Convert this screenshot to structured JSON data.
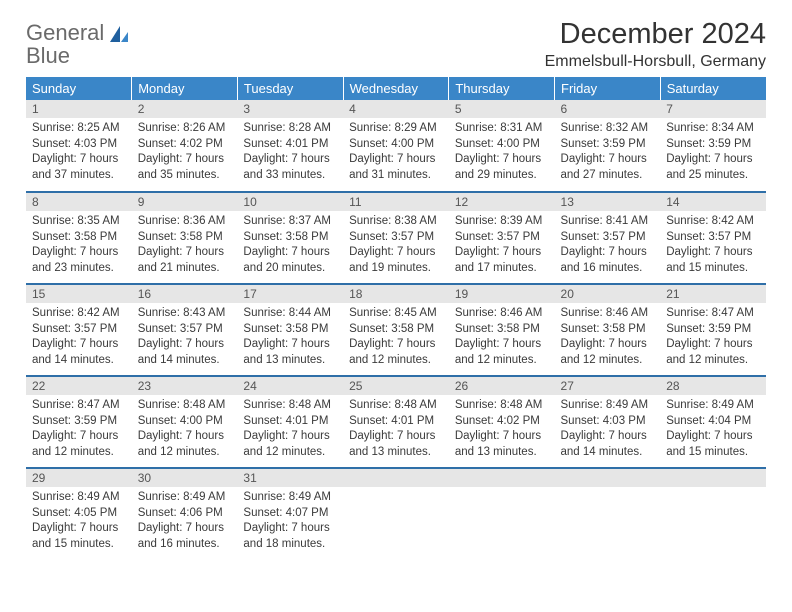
{
  "brand": {
    "word1": "General",
    "word2": "Blue"
  },
  "title": "December 2024",
  "location": "Emmelsbull-Horsbull, Germany",
  "colors": {
    "header_bg": "#3a86c8",
    "header_text": "#ffffff",
    "row_sep": "#2f6fa8",
    "daynum_bg": "#e6e6e6",
    "text": "#333333",
    "logo_gray": "#6a6a6a",
    "logo_blue": "#2e7fbf"
  },
  "weekdays": [
    "Sunday",
    "Monday",
    "Tuesday",
    "Wednesday",
    "Thursday",
    "Friday",
    "Saturday"
  ],
  "weeks": [
    [
      {
        "n": "1",
        "sr": "8:25 AM",
        "ss": "4:03 PM",
        "dl": "7 hours and 37 minutes."
      },
      {
        "n": "2",
        "sr": "8:26 AM",
        "ss": "4:02 PM",
        "dl": "7 hours and 35 minutes."
      },
      {
        "n": "3",
        "sr": "8:28 AM",
        "ss": "4:01 PM",
        "dl": "7 hours and 33 minutes."
      },
      {
        "n": "4",
        "sr": "8:29 AM",
        "ss": "4:00 PM",
        "dl": "7 hours and 31 minutes."
      },
      {
        "n": "5",
        "sr": "8:31 AM",
        "ss": "4:00 PM",
        "dl": "7 hours and 29 minutes."
      },
      {
        "n": "6",
        "sr": "8:32 AM",
        "ss": "3:59 PM",
        "dl": "7 hours and 27 minutes."
      },
      {
        "n": "7",
        "sr": "8:34 AM",
        "ss": "3:59 PM",
        "dl": "7 hours and 25 minutes."
      }
    ],
    [
      {
        "n": "8",
        "sr": "8:35 AM",
        "ss": "3:58 PM",
        "dl": "7 hours and 23 minutes."
      },
      {
        "n": "9",
        "sr": "8:36 AM",
        "ss": "3:58 PM",
        "dl": "7 hours and 21 minutes."
      },
      {
        "n": "10",
        "sr": "8:37 AM",
        "ss": "3:58 PM",
        "dl": "7 hours and 20 minutes."
      },
      {
        "n": "11",
        "sr": "8:38 AM",
        "ss": "3:57 PM",
        "dl": "7 hours and 19 minutes."
      },
      {
        "n": "12",
        "sr": "8:39 AM",
        "ss": "3:57 PM",
        "dl": "7 hours and 17 minutes."
      },
      {
        "n": "13",
        "sr": "8:41 AM",
        "ss": "3:57 PM",
        "dl": "7 hours and 16 minutes."
      },
      {
        "n": "14",
        "sr": "8:42 AM",
        "ss": "3:57 PM",
        "dl": "7 hours and 15 minutes."
      }
    ],
    [
      {
        "n": "15",
        "sr": "8:42 AM",
        "ss": "3:57 PM",
        "dl": "7 hours and 14 minutes."
      },
      {
        "n": "16",
        "sr": "8:43 AM",
        "ss": "3:57 PM",
        "dl": "7 hours and 14 minutes."
      },
      {
        "n": "17",
        "sr": "8:44 AM",
        "ss": "3:58 PM",
        "dl": "7 hours and 13 minutes."
      },
      {
        "n": "18",
        "sr": "8:45 AM",
        "ss": "3:58 PM",
        "dl": "7 hours and 12 minutes."
      },
      {
        "n": "19",
        "sr": "8:46 AM",
        "ss": "3:58 PM",
        "dl": "7 hours and 12 minutes."
      },
      {
        "n": "20",
        "sr": "8:46 AM",
        "ss": "3:58 PM",
        "dl": "7 hours and 12 minutes."
      },
      {
        "n": "21",
        "sr": "8:47 AM",
        "ss": "3:59 PM",
        "dl": "7 hours and 12 minutes."
      }
    ],
    [
      {
        "n": "22",
        "sr": "8:47 AM",
        "ss": "3:59 PM",
        "dl": "7 hours and 12 minutes."
      },
      {
        "n": "23",
        "sr": "8:48 AM",
        "ss": "4:00 PM",
        "dl": "7 hours and 12 minutes."
      },
      {
        "n": "24",
        "sr": "8:48 AM",
        "ss": "4:01 PM",
        "dl": "7 hours and 12 minutes."
      },
      {
        "n": "25",
        "sr": "8:48 AM",
        "ss": "4:01 PM",
        "dl": "7 hours and 13 minutes."
      },
      {
        "n": "26",
        "sr": "8:48 AM",
        "ss": "4:02 PM",
        "dl": "7 hours and 13 minutes."
      },
      {
        "n": "27",
        "sr": "8:49 AM",
        "ss": "4:03 PM",
        "dl": "7 hours and 14 minutes."
      },
      {
        "n": "28",
        "sr": "8:49 AM",
        "ss": "4:04 PM",
        "dl": "7 hours and 15 minutes."
      }
    ],
    [
      {
        "n": "29",
        "sr": "8:49 AM",
        "ss": "4:05 PM",
        "dl": "7 hours and 15 minutes."
      },
      {
        "n": "30",
        "sr": "8:49 AM",
        "ss": "4:06 PM",
        "dl": "7 hours and 16 minutes."
      },
      {
        "n": "31",
        "sr": "8:49 AM",
        "ss": "4:07 PM",
        "dl": "7 hours and 18 minutes."
      },
      null,
      null,
      null,
      null
    ]
  ],
  "labels": {
    "sunrise": "Sunrise: ",
    "sunset": "Sunset: ",
    "daylight": "Daylight: "
  }
}
